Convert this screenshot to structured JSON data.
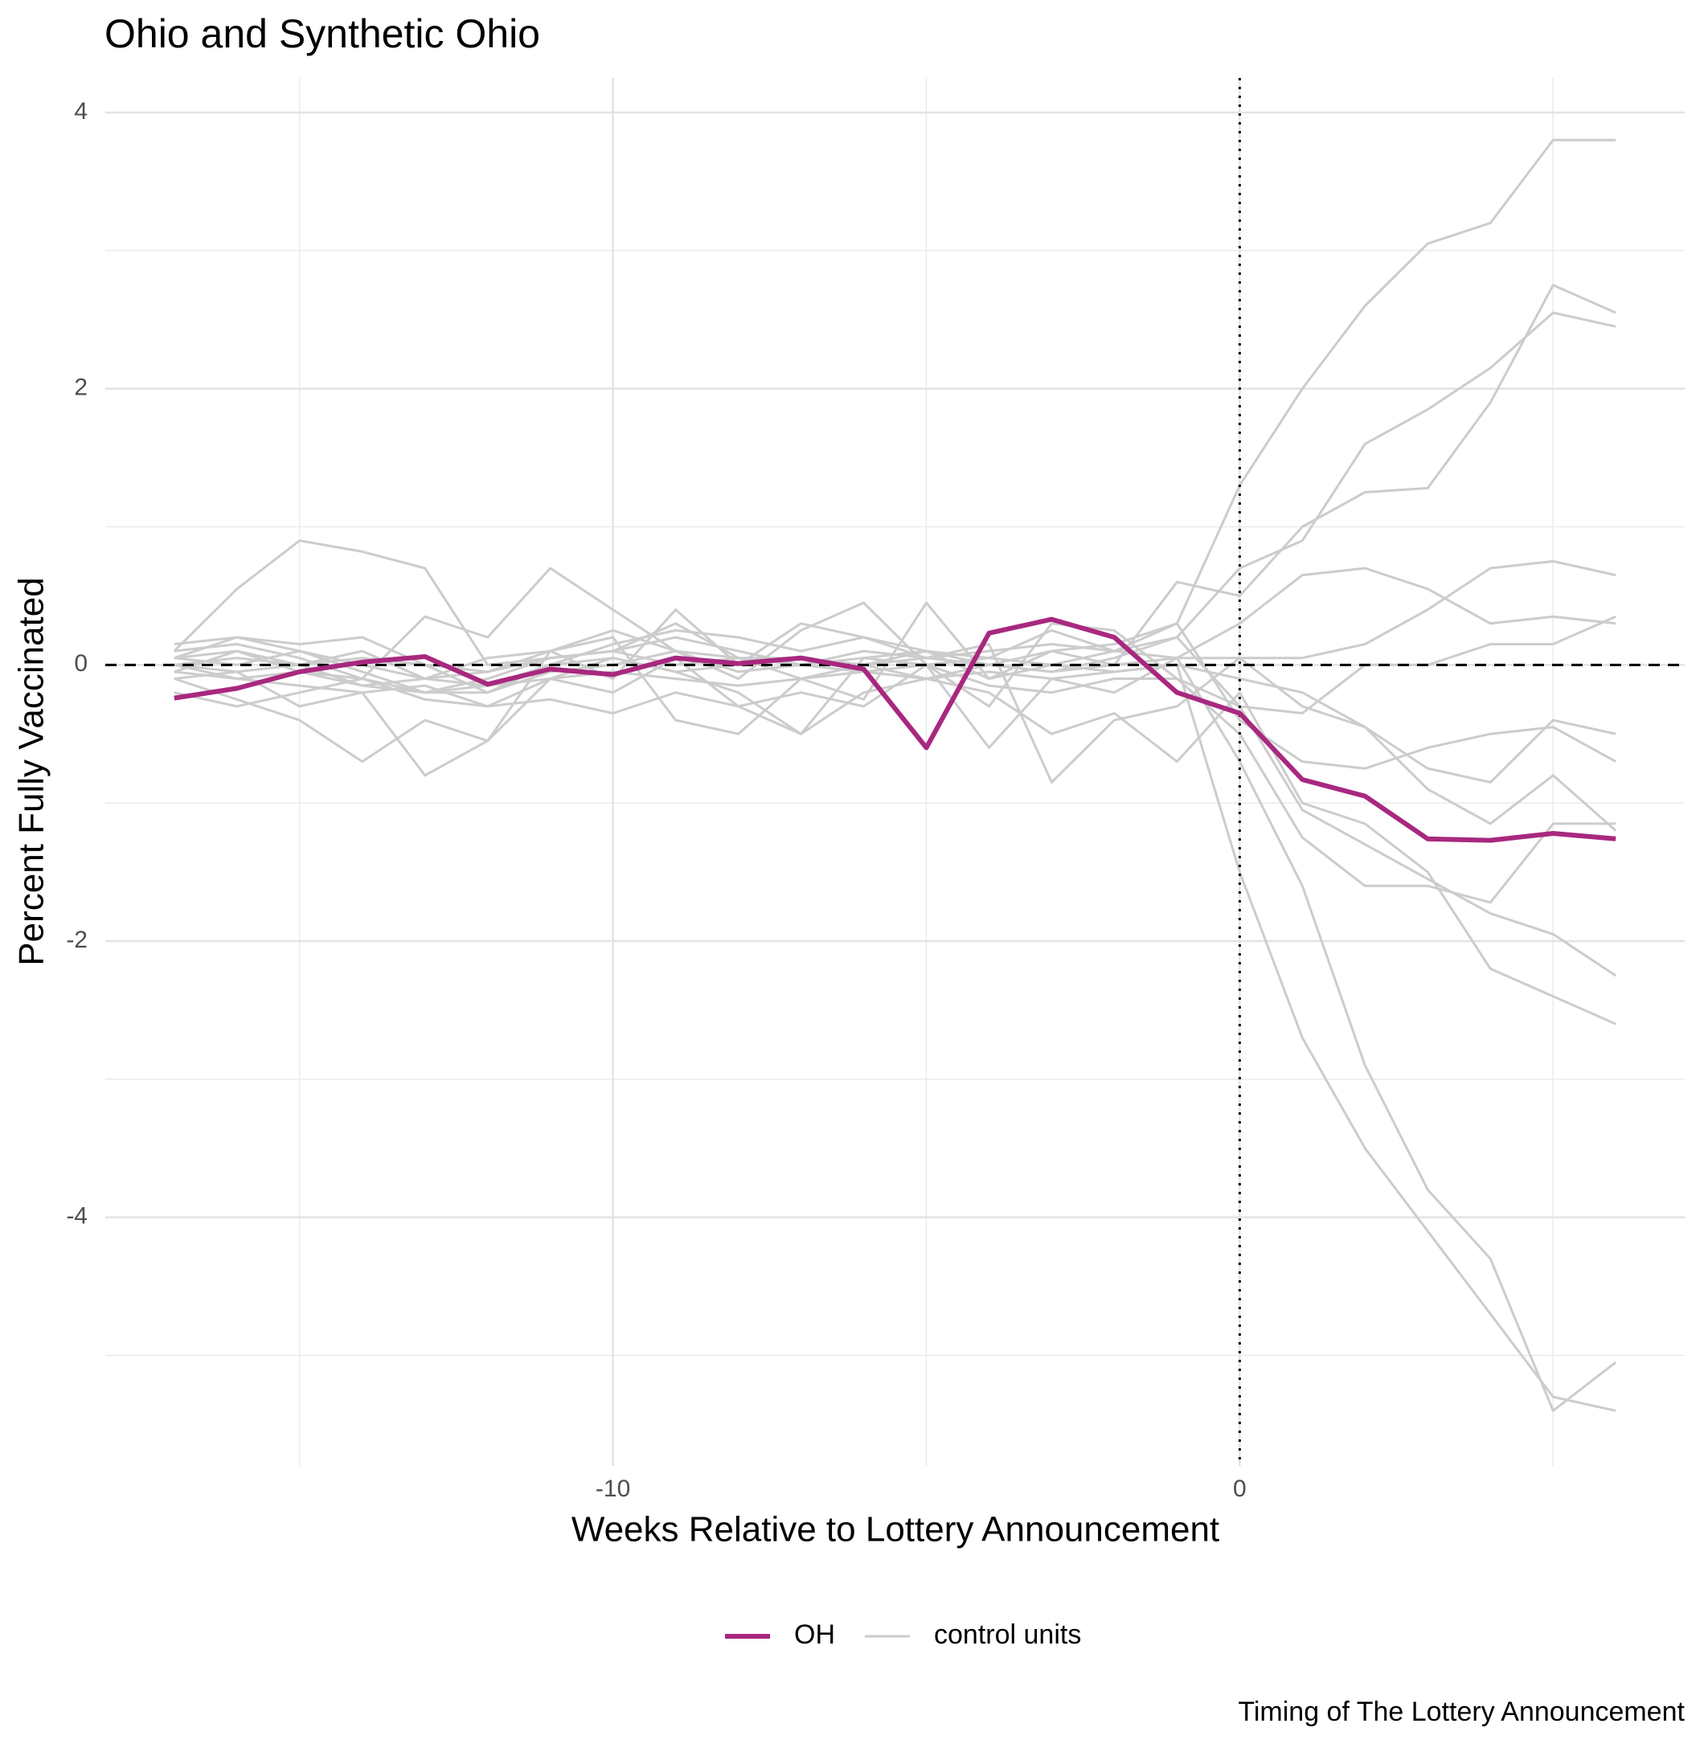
{
  "chart_data": {
    "type": "line",
    "title": "Ohio and Synthetic Ohio",
    "x_label": "Weeks Relative to Lottery Announcement",
    "y_label": "Percent Fully Vaccinated",
    "caption": "Timing of The Lottery Announcement",
    "x": [
      -17,
      -16,
      -15,
      -14,
      -13,
      -12,
      -11,
      -10,
      -9,
      -8,
      -7,
      -6,
      -5,
      -4,
      -3,
      -2,
      -1,
      0,
      1,
      2,
      3,
      4,
      5,
      6
    ],
    "xlim": [
      -18.1,
      7.1
    ],
    "ylim": [
      -5.8,
      4.25
    ],
    "xticks": [
      -10,
      0
    ],
    "yticks": [
      -4,
      -2,
      0,
      2,
      4
    ],
    "minor_xticks": [
      -15,
      -5,
      5
    ],
    "minor_yticks": [
      -5,
      -3,
      -1,
      1,
      3
    ],
    "grid": true,
    "hline": 0,
    "vline": 0,
    "series": [
      {
        "name": "OH",
        "color": "#a8287f",
        "values": [
          -0.24,
          -0.17,
          -0.05,
          0.02,
          0.06,
          -0.14,
          -0.03,
          -0.07,
          0.05,
          0.01,
          0.05,
          -0.03,
          -0.6,
          0.23,
          0.33,
          0.2,
          -0.2,
          -0.35,
          -0.83,
          -0.95,
          -1.26,
          -1.27,
          -1.22,
          -1.26
        ]
      }
    ],
    "control_units": {
      "name": "control units",
      "color": "#cccccc",
      "lines": [
        [
          0.1,
          0.15,
          0.05,
          -0.1,
          -0.2,
          -0.1,
          0.05,
          0.1,
          0.2,
          0.1,
          0.0,
          0.1,
          0.05,
          0.0,
          0.1,
          0.15,
          0.3,
          1.3,
          2.0,
          2.6,
          3.05,
          3.2,
          3.8,
          3.8
        ],
        [
          0.05,
          0.2,
          0.1,
          0.0,
          -0.1,
          -0.05,
          0.1,
          0.25,
          0.1,
          -0.05,
          0.0,
          0.05,
          0.1,
          0.0,
          -0.05,
          0.05,
          0.2,
          0.7,
          0.9,
          1.6,
          1.85,
          2.15,
          2.55,
          2.45
        ],
        [
          0.1,
          0.55,
          0.9,
          0.82,
          0.7,
          0.0,
          0.05,
          0.1,
          0.3,
          0.05,
          -0.1,
          0.0,
          0.1,
          -0.1,
          0.1,
          0.0,
          0.6,
          0.5,
          1.0,
          1.25,
          1.28,
          1.9,
          2.75,
          2.55
        ],
        [
          -0.1,
          -0.25,
          -0.4,
          -0.7,
          -0.4,
          -0.55,
          -0.1,
          0.05,
          -0.05,
          -0.2,
          -0.5,
          0.05,
          0.0,
          -0.6,
          -0.1,
          -0.2,
          0.05,
          0.3,
          0.65,
          0.7,
          0.55,
          0.3,
          0.35,
          0.3
        ],
        [
          0.0,
          -0.1,
          -0.15,
          -0.2,
          -0.8,
          -0.55,
          0.1,
          -0.1,
          0.4,
          0.0,
          0.3,
          0.2,
          0.05,
          0.15,
          -0.85,
          -0.4,
          -0.3,
          0.05,
          0.05,
          0.15,
          0.4,
          0.7,
          0.75,
          0.65
        ],
        [
          -0.05,
          0.1,
          -0.05,
          -0.1,
          0.35,
          0.2,
          0.7,
          0.4,
          0.1,
          -0.1,
          0.25,
          0.45,
          0.0,
          -0.3,
          0.3,
          0.25,
          -0.1,
          -0.3,
          -0.35,
          0.0,
          0.0,
          0.15,
          0.15,
          0.35
        ],
        [
          0.05,
          0.0,
          0.1,
          -0.05,
          -0.2,
          -0.2,
          -0.05,
          0.0,
          0.1,
          0.05,
          0.0,
          -0.05,
          0.0,
          0.05,
          0.0,
          -0.05,
          0.0,
          -1.5,
          -2.7,
          -3.5,
          -4.1,
          -4.7,
          -5.3,
          -5.4
        ],
        [
          0.0,
          -0.05,
          0.0,
          0.1,
          -0.1,
          -0.15,
          0.0,
          0.05,
          -0.05,
          0.0,
          0.05,
          0.0,
          -0.1,
          0.0,
          -0.05,
          0.0,
          0.05,
          -0.7,
          -1.6,
          -2.9,
          -3.8,
          -4.3,
          -5.4,
          -5.05
        ],
        [
          -0.2,
          -0.3,
          -0.2,
          -0.1,
          -0.25,
          -0.3,
          -0.1,
          -0.2,
          0.05,
          -0.3,
          -0.2,
          -0.3,
          0.0,
          -0.15,
          -0.2,
          -0.1,
          -0.1,
          -0.5,
          -1.25,
          -1.6,
          -1.6,
          -1.72,
          -1.15,
          -1.15
        ],
        [
          0.15,
          0.2,
          0.15,
          0.2,
          0.0,
          -0.2,
          0.0,
          0.15,
          0.25,
          0.2,
          0.1,
          0.2,
          0.1,
          0.05,
          0.25,
          0.1,
          0.2,
          -0.3,
          -1.05,
          -1.3,
          -1.55,
          -1.8,
          -1.95,
          -2.25
        ],
        [
          -0.1,
          -0.05,
          -0.3,
          -0.2,
          -0.15,
          -0.3,
          -0.25,
          -0.35,
          -0.2,
          -0.3,
          -0.5,
          -0.2,
          -0.1,
          -0.2,
          -0.5,
          -0.35,
          -0.7,
          -0.2,
          -1.0,
          -1.15,
          -1.5,
          -2.2,
          -2.4,
          -2.6
        ],
        [
          0.0,
          0.05,
          0.0,
          -0.15,
          -0.1,
          0.05,
          0.1,
          0.2,
          -0.4,
          -0.5,
          -0.1,
          -0.25,
          0.45,
          -0.1,
          0.0,
          0.1,
          0.3,
          -0.4,
          -0.7,
          -0.75,
          -0.6,
          -0.5,
          -0.45,
          -0.7
        ],
        [
          0.05,
          0.1,
          0.0,
          0.05,
          0.0,
          -0.05,
          0.05,
          0.1,
          0.0,
          0.05,
          0.05,
          0.0,
          0.05,
          0.1,
          0.15,
          0.1,
          0.05,
          0.05,
          -0.3,
          -0.45,
          -0.75,
          -0.85,
          -0.4,
          -0.5
        ],
        [
          -0.05,
          -0.1,
          -0.05,
          -0.15,
          -0.2,
          -0.15,
          -0.1,
          -0.05,
          -0.1,
          -0.15,
          -0.1,
          -0.05,
          -0.1,
          -0.05,
          -0.1,
          -0.05,
          0.0,
          -0.1,
          -0.2,
          -0.45,
          -0.9,
          -1.15,
          -0.8,
          -1.2
        ]
      ]
    }
  }
}
